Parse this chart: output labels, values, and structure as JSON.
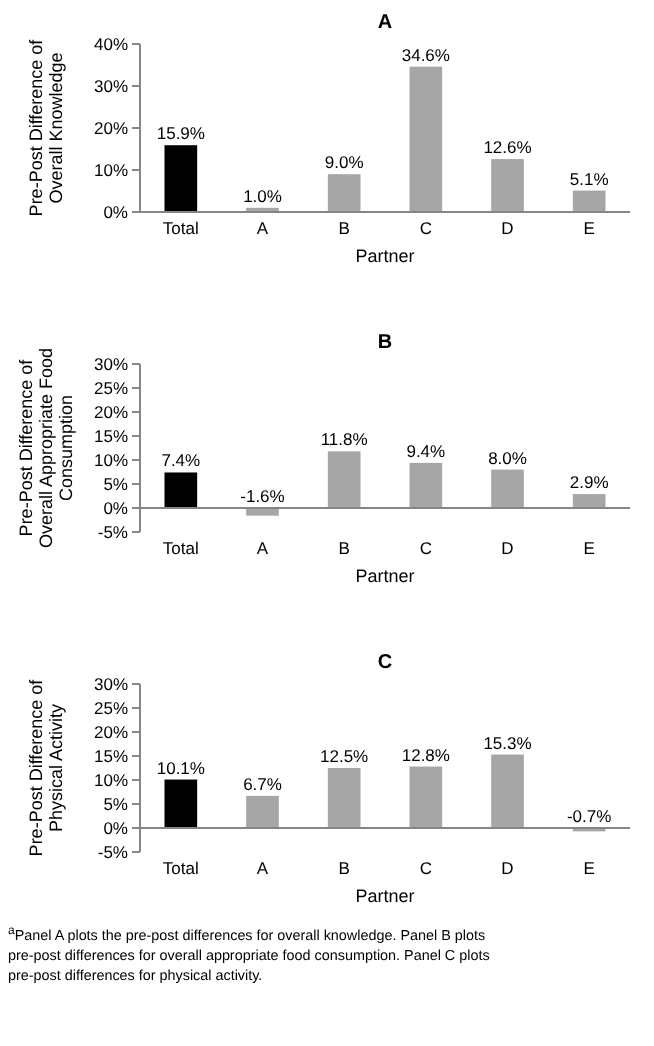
{
  "chart_data": [
    {
      "type": "bar",
      "title": "A",
      "xlabel": "Partner",
      "ylabel": "Pre-Post Difference of Overall Knowledge",
      "categories": [
        "Total",
        "A",
        "B",
        "C",
        "D",
        "E"
      ],
      "values": [
        15.9,
        1.0,
        9.0,
        34.6,
        12.6,
        5.1
      ],
      "colors": [
        "#000000",
        "#a6a6a6",
        "#a6a6a6",
        "#a6a6a6",
        "#a6a6a6",
        "#a6a6a6"
      ],
      "value_labels": [
        "15.9%",
        "1.0%",
        "9.0%",
        "34.6%",
        "12.6%",
        "5.1%"
      ],
      "ylim": [
        0,
        40
      ],
      "yticks": [
        {
          "value": 0,
          "label": "0%"
        },
        {
          "value": 10,
          "label": "10%"
        },
        {
          "value": 20,
          "label": "20%"
        },
        {
          "value": 30,
          "label": "30%"
        },
        {
          "value": 40,
          "label": "40%"
        }
      ],
      "grid": false
    },
    {
      "type": "bar",
      "title": "B",
      "xlabel": "Partner",
      "ylabel": "Pre-Post Difference of Overall Appropriate Food Consumption",
      "categories": [
        "Total",
        "A",
        "B",
        "C",
        "D",
        "E"
      ],
      "values": [
        7.4,
        -1.6,
        11.8,
        9.4,
        8.0,
        2.9
      ],
      "colors": [
        "#000000",
        "#a6a6a6",
        "#a6a6a6",
        "#a6a6a6",
        "#a6a6a6",
        "#a6a6a6"
      ],
      "value_labels": [
        "7.4%",
        "-1.6%",
        "11.8%",
        "9.4%",
        "8.0%",
        "2.9%"
      ],
      "ylim": [
        -5,
        30
      ],
      "yticks": [
        {
          "value": -5,
          "label": "-5%"
        },
        {
          "value": 0,
          "label": "0%"
        },
        {
          "value": 5,
          "label": "5%"
        },
        {
          "value": 10,
          "label": "10%"
        },
        {
          "value": 15,
          "label": "15%"
        },
        {
          "value": 20,
          "label": "20%"
        },
        {
          "value": 25,
          "label": "25%"
        },
        {
          "value": 30,
          "label": "30%"
        }
      ],
      "grid": false
    },
    {
      "type": "bar",
      "title": "C",
      "xlabel": "Partner",
      "ylabel": "Pre-Post Difference of Physical Activity",
      "categories": [
        "Total",
        "A",
        "B",
        "C",
        "D",
        "E"
      ],
      "values": [
        10.1,
        6.7,
        12.5,
        12.8,
        15.3,
        -0.7
      ],
      "colors": [
        "#000000",
        "#a6a6a6",
        "#a6a6a6",
        "#a6a6a6",
        "#a6a6a6",
        "#a6a6a6"
      ],
      "value_labels": [
        "10.1%",
        "6.7%",
        "12.5%",
        "12.8%",
        "15.3%",
        "-0.7%"
      ],
      "ylim": [
        -5,
        30
      ],
      "yticks": [
        {
          "value": -5,
          "label": "-5%"
        },
        {
          "value": 0,
          "label": "0%"
        },
        {
          "value": 5,
          "label": "5%"
        },
        {
          "value": 10,
          "label": "10%"
        },
        {
          "value": 15,
          "label": "15%"
        },
        {
          "value": 20,
          "label": "20%"
        },
        {
          "value": 25,
          "label": "25%"
        },
        {
          "value": 30,
          "label": "30%"
        }
      ],
      "grid": false,
      "annotations": [
        "$^{a}$Panel A plots the pre-post differences for overall knowledge. Panel B plots pre-post differences for overall appropriate food consumption. Panel C plots pre-post differences for physical activity."
      ]
    }
  ]
}
